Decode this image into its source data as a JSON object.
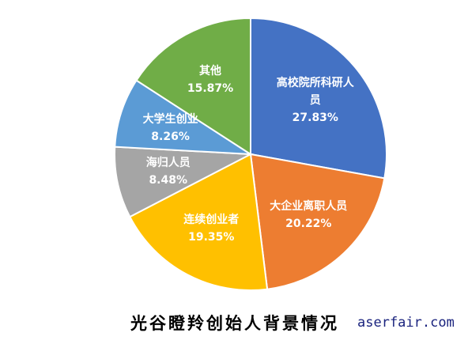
{
  "chart_data": {
    "type": "pie",
    "title": "光谷瞪羚创始人背景情况",
    "categories": [
      "高校院所科研人员",
      "大企业离职人员",
      "连续创业者",
      "海归人员",
      "大学生创业",
      "其他"
    ],
    "values": [
      27.83,
      20.22,
      19.35,
      8.48,
      8.26,
      15.87
    ],
    "value_labels": [
      "27.83%",
      "20.22%",
      "19.35%",
      "8.48%",
      "8.26%",
      "15.87%"
    ],
    "colors": [
      "#4472c4",
      "#ed7d31",
      "#ffc000",
      "#a5a5a5",
      "#5b9bd5",
      "#70ad47"
    ]
  },
  "watermark": "aserfair.com"
}
